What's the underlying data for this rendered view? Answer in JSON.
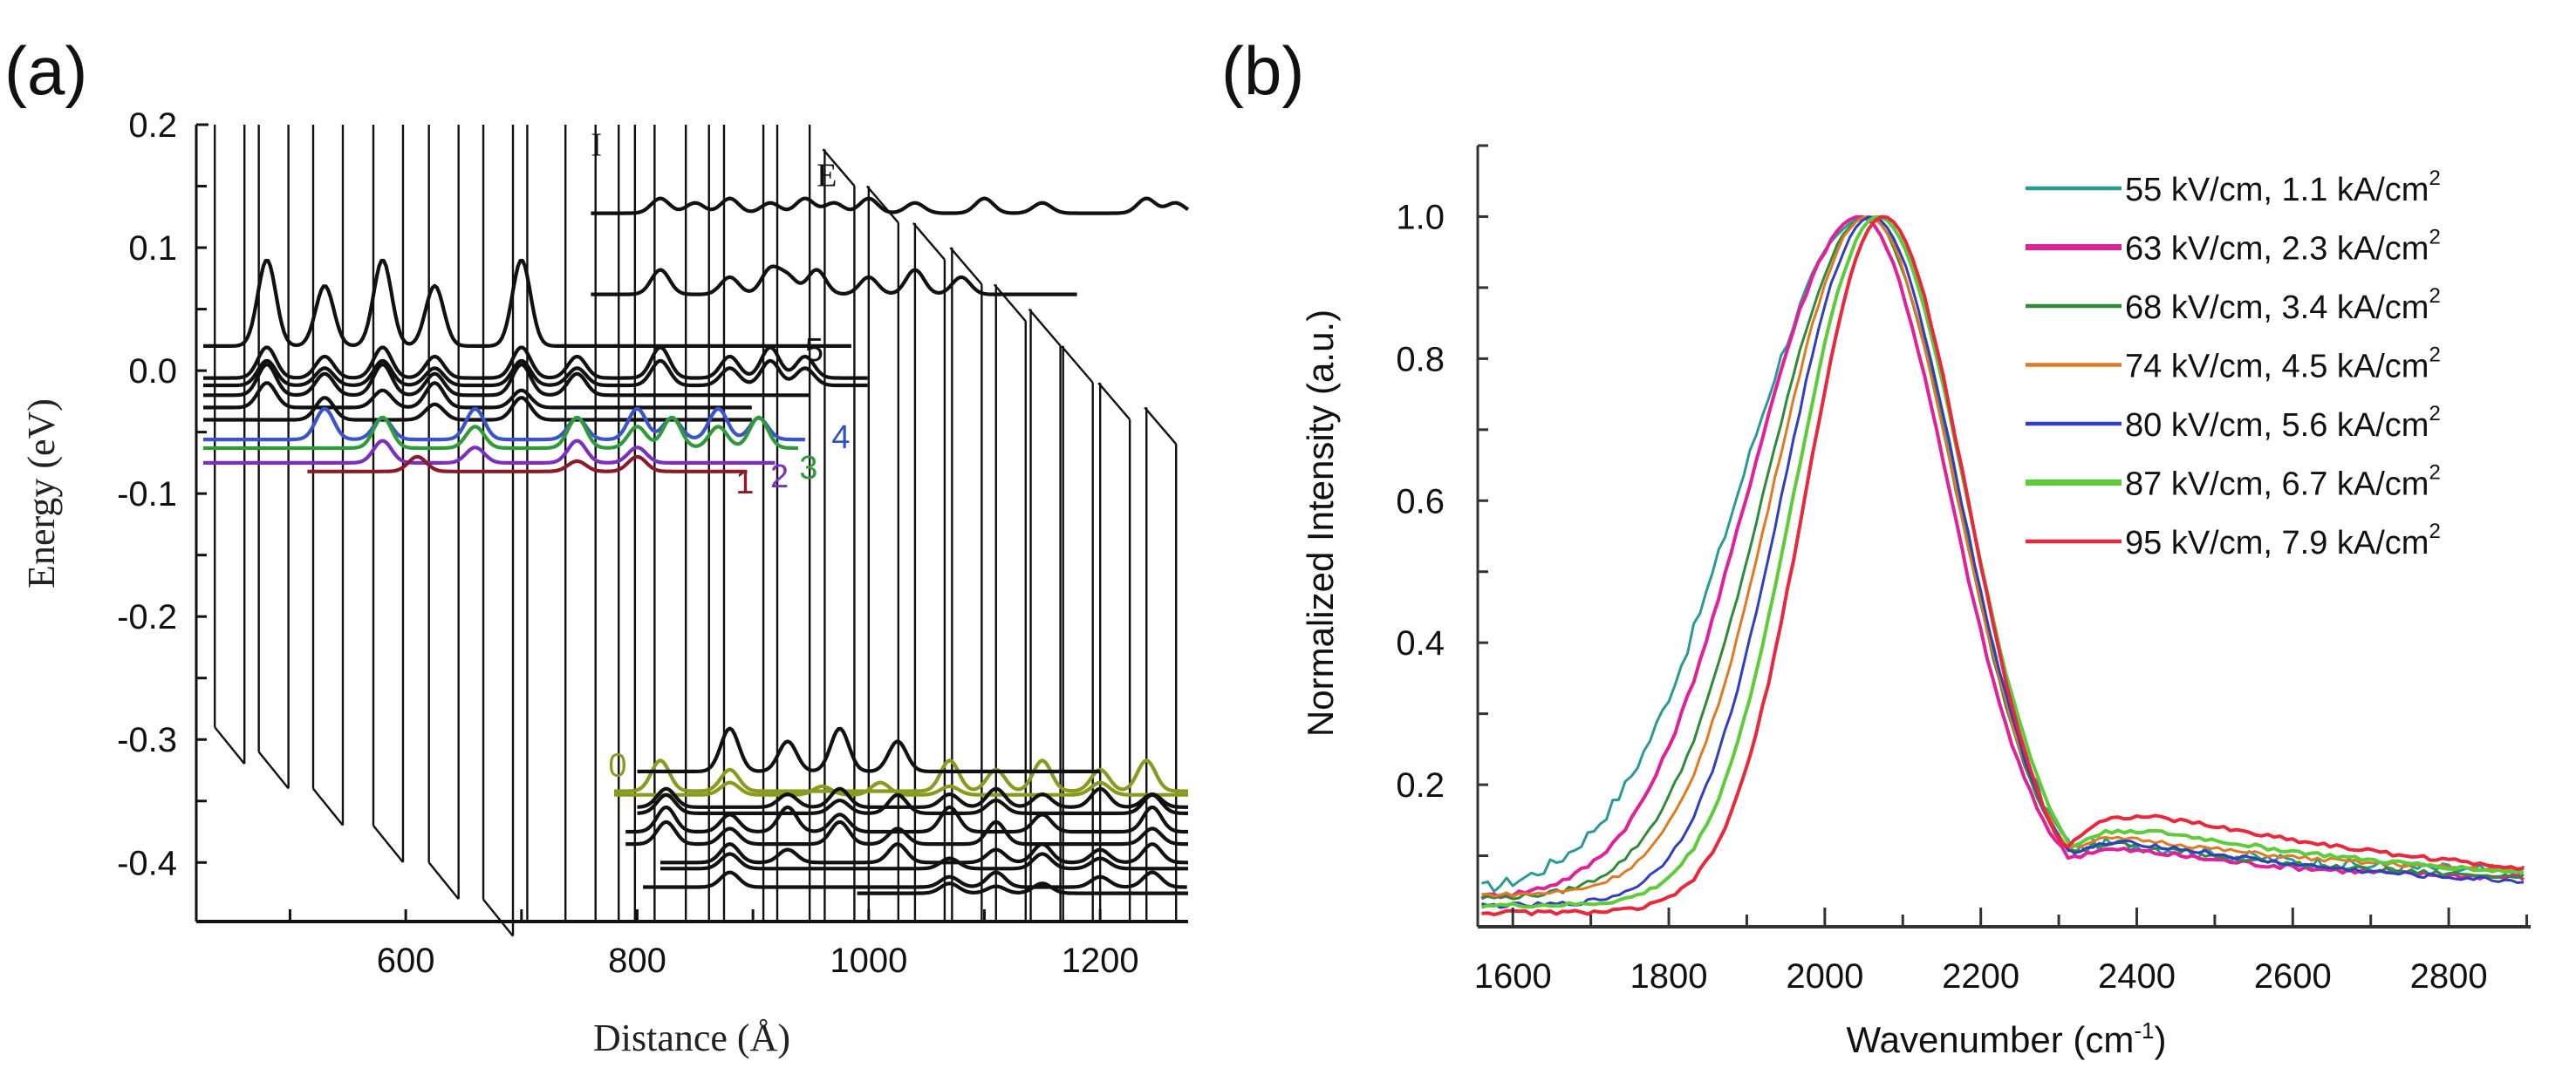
{
  "panel_labels": {
    "a": "(a)",
    "b": "(b)"
  },
  "chart_data": [
    {
      "type": "line",
      "panel": "a",
      "title": "",
      "xlabel": "Distance (Å)",
      "ylabel": "Energy (eV)",
      "xlim": [
        419,
        1276
      ],
      "ylim": [
        -0.448,
        0.2
      ],
      "xticks": [
        600,
        800,
        1000,
        1200
      ],
      "xtick_labels": [
        "600",
        "800",
        "1000",
        "1200"
      ],
      "yticks": [
        0.2,
        0.1,
        0.0,
        -0.1,
        -0.2,
        -0.3,
        -0.4
      ],
      "ytick_labels": [
        "0.2",
        "0.1",
        "0.0",
        "-0.1",
        "-0.2",
        "-0.3",
        "-0.4"
      ],
      "grid": false,
      "region_labels": [
        {
          "text": "I",
          "x": 760,
          "y": 0.175
        },
        {
          "text": "E",
          "x": 955,
          "y": 0.15
        }
      ],
      "band_profile": {
        "description": "Conduction band edge under applied field (sawtooth quantum wells)",
        "wells": [
          {
            "x": 435,
            "top": 0.2,
            "bottom": -0.29
          },
          {
            "x": 473,
            "top": 0.2,
            "bottom": -0.31
          },
          {
            "x": 520,
            "top": 0.2,
            "bottom": -0.34
          },
          {
            "x": 572,
            "top": 0.2,
            "bottom": -0.37
          },
          {
            "x": 620,
            "top": 0.2,
            "bottom": -0.4
          },
          {
            "x": 667,
            "top": 0.2,
            "bottom": -0.43
          },
          {
            "x": 705,
            "top": 0.2,
            "bottom": -0.448
          },
          {
            "x": 738,
            "top": 0.2,
            "bottom": -0.448
          },
          {
            "x": 764,
            "top": 0.2,
            "bottom": -0.448
          },
          {
            "x": 784,
            "top": 0.2,
            "bottom": -0.448
          },
          {
            "x": 798,
            "top": 0.2,
            "bottom": -0.448
          },
          {
            "x": 815,
            "top": 0.2,
            "bottom": -0.448
          },
          {
            "x": 842,
            "top": 0.2,
            "bottom": -0.448
          },
          {
            "x": 862,
            "top": 0.2,
            "bottom": -0.448
          },
          {
            "x": 875,
            "top": 0.2,
            "bottom": -0.448
          },
          {
            "x": 909,
            "top": 0.2,
            "bottom": -0.448
          },
          {
            "x": 921,
            "top": 0.2,
            "bottom": -0.448
          },
          {
            "x": 949,
            "top": 0.2,
            "bottom": -0.448
          },
          {
            "x": 962,
            "top": 0.18,
            "bottom": -0.448
          },
          {
            "x": 1000,
            "top": 0.15,
            "bottom": -0.448
          },
          {
            "x": 1040,
            "top": 0.12,
            "bottom": -0.448
          },
          {
            "x": 1072,
            "top": 0.1,
            "bottom": -0.448
          },
          {
            "x": 1110,
            "top": 0.07,
            "bottom": -0.448
          },
          {
            "x": 1140,
            "top": 0.05,
            "bottom": -0.448
          },
          {
            "x": 1168,
            "top": 0.02,
            "bottom": -0.448
          },
          {
            "x": 1200,
            "top": -0.01,
            "bottom": -0.448
          },
          {
            "x": 1240,
            "top": -0.03,
            "bottom": -0.448
          }
        ]
      },
      "state_labels": [
        {
          "text": "0",
          "x": 775,
          "y": -0.33,
          "color": "#8a9a1e"
        },
        {
          "text": "1",
          "x": 885,
          "y": -0.1,
          "color": "#8b1a2a"
        },
        {
          "text": "2",
          "x": 915,
          "y": -0.095,
          "color": "#7a2fbf"
        },
        {
          "text": "3",
          "x": 940,
          "y": -0.088,
          "color": "#2e9a3a"
        },
        {
          "text": "4",
          "x": 968,
          "y": -0.063,
          "color": "#3050c0"
        },
        {
          "text": "5",
          "x": 945,
          "y": 0.008,
          "color": "#111111"
        }
      ],
      "series": [
        {
          "name": "upper-1",
          "color": "#111111",
          "x_start": 760,
          "x_end": 1276,
          "baseline": 0.128,
          "amp": 0.012,
          "peaks": [
            820,
            850,
            880,
            915,
            945,
            970,
            1000,
            1040,
            1100,
            1150,
            1240,
            1265
          ]
        },
        {
          "name": "upper-2",
          "color": "#111111",
          "x_start": 760,
          "x_end": 1180,
          "baseline": 0.062,
          "amp": 0.02,
          "peaks": [
            820,
            880,
            915,
            930,
            955,
            1000,
            1040,
            1080
          ]
        },
        {
          "name": "state-5a",
          "color": "#111111",
          "x_start": 425,
          "x_end": 985,
          "baseline": 0.02,
          "amp": 0.07,
          "peaks": [
            480,
            530,
            580,
            625,
            700
          ]
        },
        {
          "name": "state-5b",
          "color": "#111111",
          "x_start": 425,
          "x_end": 1000,
          "baseline": -0.006,
          "amp": 0.025,
          "peaks": [
            480,
            530,
            580,
            625,
            700,
            748,
            820,
            880,
            915,
            945
          ]
        },
        {
          "name": "state-5c",
          "color": "#111111",
          "x_start": 425,
          "x_end": 1000,
          "baseline": -0.012,
          "amp": 0.02,
          "peaks": [
            480,
            530,
            580,
            625,
            700,
            748,
            820,
            880,
            915,
            945
          ]
        },
        {
          "name": "black-d",
          "color": "#111111",
          "x_start": 425,
          "x_end": 950,
          "baseline": -0.02,
          "amp": 0.025,
          "peaks": [
            480,
            530,
            580,
            625,
            700,
            748
          ]
        },
        {
          "name": "black-e",
          "color": "#111111",
          "x_start": 425,
          "x_end": 900,
          "baseline": -0.03,
          "amp": 0.02,
          "peaks": [
            480,
            580,
            625,
            700
          ]
        },
        {
          "name": "black-f",
          "color": "#111111",
          "x_start": 425,
          "x_end": 900,
          "baseline": -0.04,
          "amp": 0.018,
          "peaks": [
            530,
            625,
            700
          ]
        },
        {
          "name": "state-4",
          "color": "#3a55c8",
          "x_start": 425,
          "x_end": 945,
          "baseline": -0.056,
          "amp": 0.025,
          "peaks": [
            530,
            580,
            660,
            748,
            800,
            830,
            870,
            905
          ]
        },
        {
          "name": "state-3",
          "color": "#2e9a3a",
          "x_start": 425,
          "x_end": 940,
          "baseline": -0.063,
          "amp": 0.025,
          "peaks": [
            580,
            660,
            748,
            800,
            830,
            870,
            905
          ]
        },
        {
          "name": "state-2",
          "color": "#7a2fbf",
          "x_start": 425,
          "x_end": 920,
          "baseline": -0.075,
          "amp": 0.018,
          "peaks": [
            580,
            660,
            748,
            800
          ]
        },
        {
          "name": "state-1",
          "color": "#8b1a2a",
          "x_start": 515,
          "x_end": 895,
          "baseline": -0.082,
          "amp": 0.012,
          "peaks": [
            610,
            748,
            800
          ]
        },
        {
          "name": "state-0a",
          "color": "#8a9a1e",
          "x_start": 780,
          "x_end": 1276,
          "baseline": -0.342,
          "amp": 0.025,
          "peaks": [
            820,
            880,
            1070,
            1110,
            1150,
            1200,
            1240
          ]
        },
        {
          "name": "state-0b",
          "color": "#8a9a1e",
          "x_start": 780,
          "x_end": 1276,
          "baseline": -0.345,
          "amp": 0.01,
          "peaks": [
            880,
            960,
            1010,
            1070,
            1200
          ]
        },
        {
          "name": "lower-a",
          "color": "#111111",
          "x_start": 800,
          "x_end": 1200,
          "baseline": -0.326,
          "amp": 0.035,
          "peaks": [
            880,
            930,
            975,
            1025
          ]
        },
        {
          "name": "lower-b",
          "color": "#111111",
          "x_start": 800,
          "x_end": 1276,
          "baseline": -0.355,
          "amp": 0.015,
          "peaks": [
            825,
            930,
            975,
            1070,
            1110,
            1150,
            1200,
            1245
          ]
        },
        {
          "name": "lower-c",
          "color": "#111111",
          "x_start": 800,
          "x_end": 1276,
          "baseline": -0.36,
          "amp": 0.015,
          "peaks": [
            825,
            975,
            1025,
            1110,
            1245
          ]
        },
        {
          "name": "lower-d",
          "color": "#111111",
          "x_start": 790,
          "x_end": 1276,
          "baseline": -0.375,
          "amp": 0.02,
          "peaks": [
            825,
            880,
            930,
            975,
            1070,
            1150,
            1245
          ]
        },
        {
          "name": "lower-e",
          "color": "#111111",
          "x_start": 790,
          "x_end": 1276,
          "baseline": -0.385,
          "amp": 0.018,
          "peaks": [
            825,
            880,
            975,
            1025,
            1110,
            1245
          ]
        },
        {
          "name": "lower-f",
          "color": "#111111",
          "x_start": 820,
          "x_end": 1276,
          "baseline": -0.4,
          "amp": 0.015,
          "peaks": [
            880,
            930,
            1025,
            1110,
            1150,
            1200,
            1245
          ]
        },
        {
          "name": "lower-g",
          "color": "#111111",
          "x_start": 820,
          "x_end": 1276,
          "baseline": -0.405,
          "amp": 0.012,
          "peaks": [
            880,
            1070,
            1150,
            1200
          ]
        },
        {
          "name": "lower-h",
          "color": "#111111",
          "x_start": 805,
          "x_end": 1276,
          "baseline": -0.42,
          "amp": 0.012,
          "peaks": [
            880,
            1070,
            1110,
            1200,
            1245
          ]
        },
        {
          "name": "lower-i",
          "color": "#111111",
          "x_start": 990,
          "x_end": 1276,
          "baseline": -0.425,
          "amp": 0.008,
          "peaks": [
            1070,
            1110,
            1150
          ]
        }
      ]
    },
    {
      "type": "line",
      "panel": "b",
      "title": "",
      "xlabel": "Wavenumber (cm",
      "xlabel_sup": "-1",
      "xlabel_end": ")",
      "ylabel": "Normalized Intensity (a.u.)",
      "xlim": [
        1555,
        2905
      ],
      "ylim": [
        0.0,
        1.1
      ],
      "xticks": [
        1600,
        1800,
        2000,
        2200,
        2400,
        2600,
        2800
      ],
      "xtick_labels": [
        "1600",
        "1800",
        "2000",
        "2200",
        "2400",
        "2600",
        "2800"
      ],
      "yticks": [
        0.2,
        0.4,
        0.6,
        0.8,
        1.0
      ],
      "ytick_labels": [
        "0.2",
        "0.4",
        "0.6",
        "0.8",
        "1.0"
      ],
      "grid": false,
      "legend": {
        "placement": "top-right"
      },
      "series": [
        {
          "name": "55 kV/cm, 1.1 kA/cm",
          "sup": "2",
          "color": "#2a9a96",
          "peak_x": 2055,
          "width_left": 230,
          "width_right": 160,
          "tail": 0.06,
          "tail_decay": 260,
          "floor": 0.045,
          "noise": 0.018
        },
        {
          "name": "63 kV/cm, 2.3 kA/cm",
          "sup": "2",
          "color": "#e0229a",
          "peak_x": 2045,
          "width_left": 200,
          "width_right": 160,
          "tail": 0.06,
          "tail_decay": 250,
          "floor": 0.04,
          "noise": 0.008
        },
        {
          "name": "68 kV/cm, 3.4 kA/cm",
          "sup": "2",
          "color": "#2e8b3a",
          "peak_x": 2055,
          "width_left": 185,
          "width_right": 158,
          "tail": 0.07,
          "tail_decay": 260,
          "floor": 0.04,
          "noise": 0.007
        },
        {
          "name": "74 kV/cm, 4.5 kA/cm",
          "sup": "2",
          "color": "#e07a22",
          "peak_x": 2055,
          "width_left": 170,
          "width_right": 158,
          "tail": 0.07,
          "tail_decay": 280,
          "floor": 0.045,
          "noise": 0.006
        },
        {
          "name": "80 kV/cm, 5.6 kA/cm",
          "sup": "2",
          "color": "#2f3fc0",
          "peak_x": 2060,
          "width_left": 160,
          "width_right": 158,
          "tail": 0.09,
          "tail_decay": 330,
          "floor": 0.03,
          "noise": 0.007
        },
        {
          "name": "87 kV/cm, 6.7 kA/cm",
          "sup": "2",
          "color": "#5ccc3a",
          "peak_x": 2068,
          "width_left": 150,
          "width_right": 158,
          "tail": 0.11,
          "tail_decay": 420,
          "floor": 0.03,
          "noise": 0.006
        },
        {
          "name": "95 kV/cm, 7.9 kA/cm",
          "sup": "2",
          "color": "#e8283c",
          "peak_x": 2075,
          "width_left": 140,
          "width_right": 150,
          "tail": 0.15,
          "tail_decay": 520,
          "floor": 0.02,
          "noise": 0.006
        }
      ]
    }
  ]
}
